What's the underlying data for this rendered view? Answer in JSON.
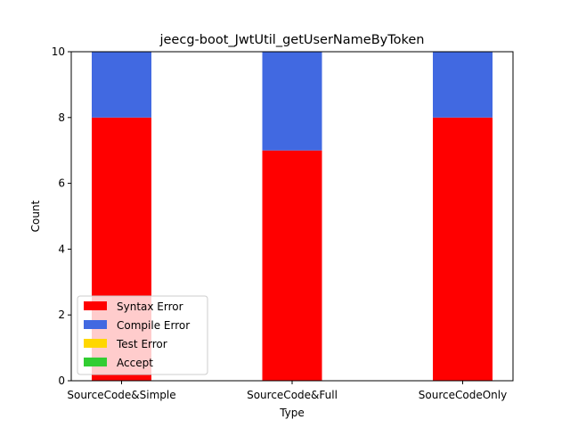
{
  "chart_data": {
    "type": "bar",
    "stacked": true,
    "title": "jeecg-boot_JwtUtil_getUserNameByToken",
    "xlabel": "Type",
    "ylabel": "Count",
    "categories": [
      "SourceCode&Simple",
      "SourceCode&Full",
      "SourceCodeOnly"
    ],
    "series": [
      {
        "name": "Syntax Error",
        "color": "#ff0000",
        "values": [
          8,
          7,
          8
        ]
      },
      {
        "name": "Compile Error",
        "color": "#4169e1",
        "values": [
          2,
          3,
          2
        ]
      },
      {
        "name": "Test Error",
        "color": "#ffd700",
        "values": [
          0,
          0,
          0
        ]
      },
      {
        "name": "Accept",
        "color": "#32cd32",
        "values": [
          0,
          0,
          0
        ]
      }
    ],
    "ylim": [
      0,
      10
    ],
    "yticks": [
      0,
      2,
      4,
      6,
      8,
      10
    ],
    "ytick_labels": [
      "0",
      "2",
      "4",
      "6",
      "8",
      "10"
    ],
    "grid": false,
    "legend_position": "lower-left"
  }
}
